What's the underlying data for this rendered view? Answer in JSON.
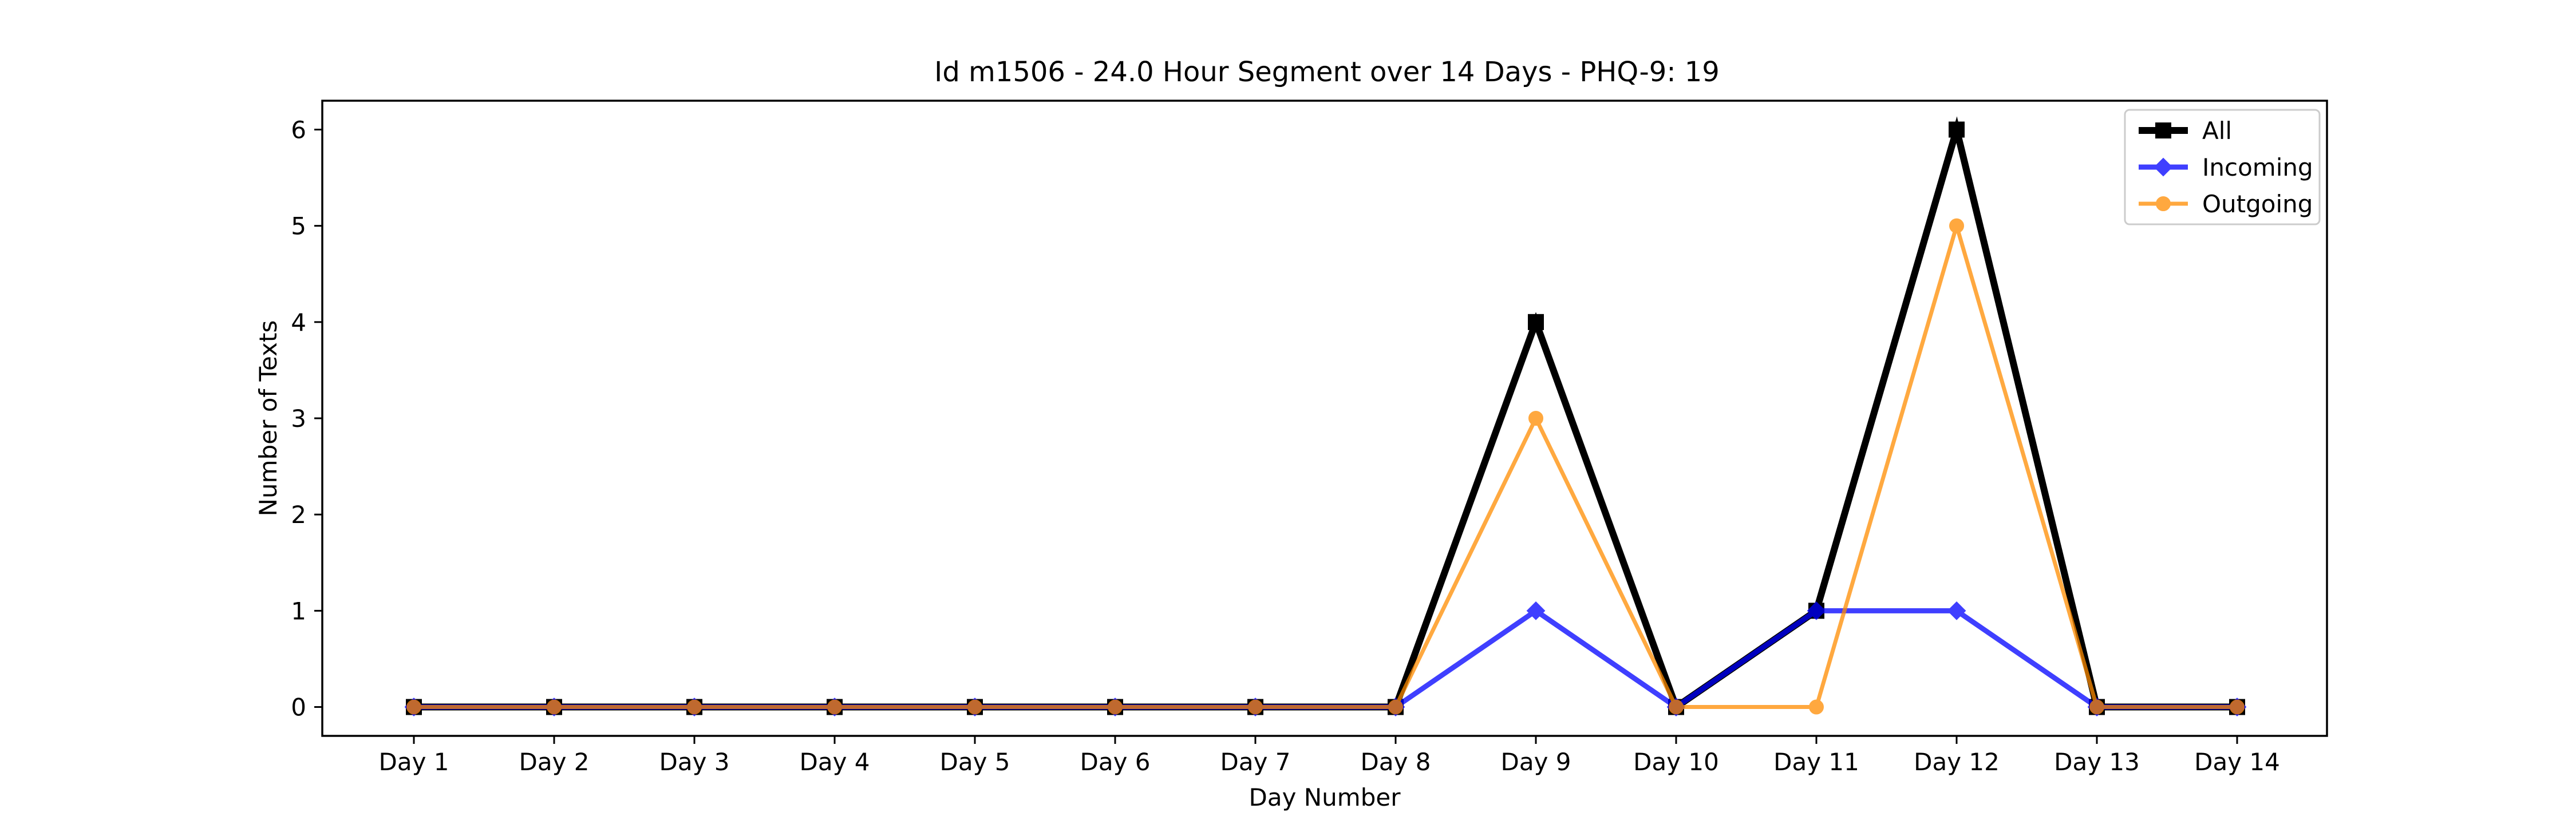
{
  "chart_data": {
    "type": "line",
    "title": "Id m1506 - 24.0 Hour Segment over 14 Days - PHQ-9: 19",
    "xlabel": "Day Number",
    "ylabel": "Number of Texts",
    "categories": [
      "Day 1",
      "Day 2",
      "Day 3",
      "Day 4",
      "Day 5",
      "Day 6",
      "Day 7",
      "Day 8",
      "Day 9",
      "Day 10",
      "Day 11",
      "Day 12",
      "Day 13",
      "Day 14"
    ],
    "yticks": [
      "0",
      "1",
      "2",
      "3",
      "4",
      "5",
      "6"
    ],
    "ylim": [
      -0.3,
      6.3
    ],
    "grid": false,
    "legend_position": "top-right",
    "series": [
      {
        "name": "All",
        "color": "#000000",
        "marker": "square",
        "values": [
          0,
          0,
          0,
          0,
          0,
          0,
          0,
          0,
          4,
          0,
          1,
          6,
          0,
          0
        ]
      },
      {
        "name": "Incoming",
        "color": "#0000ff",
        "marker": "diamond",
        "values": [
          0,
          0,
          0,
          0,
          0,
          0,
          0,
          0,
          1,
          0,
          1,
          1,
          0,
          0
        ]
      },
      {
        "name": "Outgoing",
        "color": "#ff8c00",
        "marker": "circle",
        "values": [
          0,
          0,
          0,
          0,
          0,
          0,
          0,
          0,
          3,
          0,
          0,
          5,
          0,
          0
        ]
      }
    ]
  }
}
